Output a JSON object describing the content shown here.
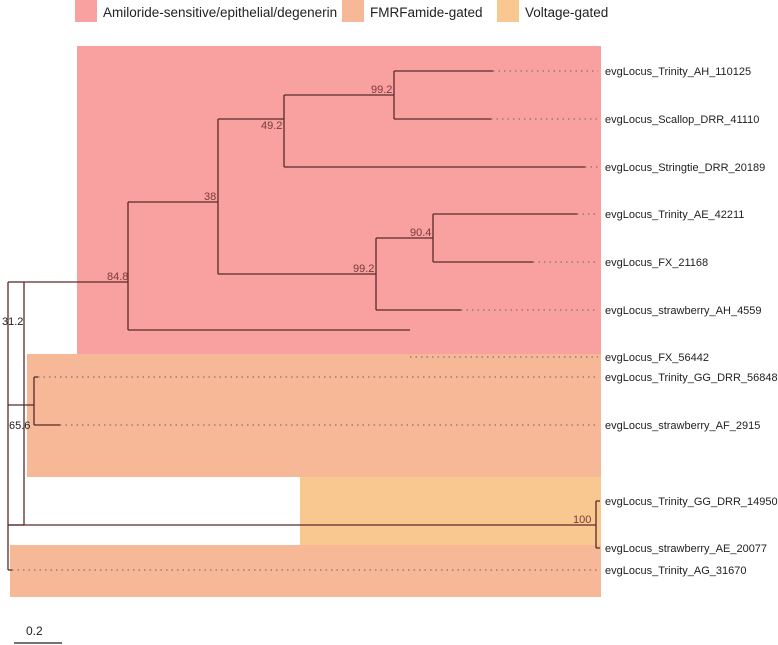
{
  "legend": [
    {
      "label": "Amiloride-sensitive/epithelial/degenerin",
      "color": "#f9a0a0"
    },
    {
      "label": "FMRFamide-gated",
      "color": "#f6b896"
    },
    {
      "label": "Voltage-gated",
      "color": "#f8c890"
    }
  ],
  "leaves": [
    "evgLocus_Trinity_AH_110125",
    "evgLocus_Scallop_DRR_41110",
    "evgLocus_Stringtie_DRR_20189",
    "evgLocus_Trinity_AE_42211",
    "evgLocus_FX_21168",
    "evgLocus_strawberry_AH_4559",
    "evgLocus_FX_56442",
    "evgLocus_Trinity_GG_DRR_56848",
    "evgLocus_strawberry_AF_2915",
    "evgLocus_Trinity_GG_DRR_14950",
    "evgLocus_strawberry_AE_20077",
    "evgLocus_Trinity_AG_31670"
  ],
  "support_values": [
    "99.2",
    "49.2",
    "38",
    "90.4",
    "99.2",
    "84.8",
    "65.6",
    "100",
    "31.2"
  ],
  "scale_bar": {
    "label": "0.2"
  },
  "colors": {
    "branch": "#5a2a2a",
    "support_text": "#7a3a3a",
    "leader": "#666666"
  }
}
